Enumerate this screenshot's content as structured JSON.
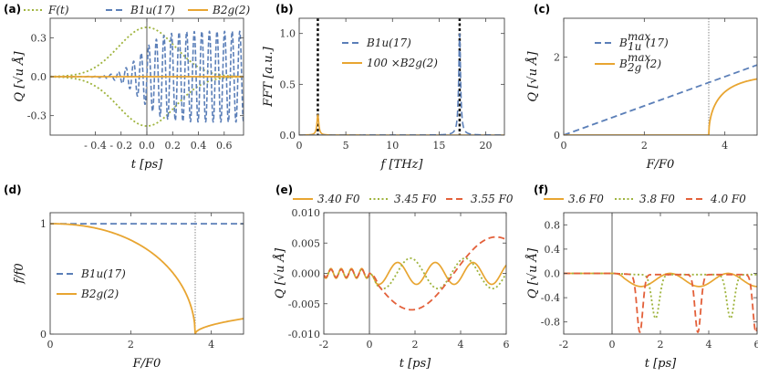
{
  "colors": {
    "blue": "#5b7fb8",
    "orange": "#e8a531",
    "green": "#9fb43e",
    "red": "#e3603a",
    "black": "#111111"
  },
  "chart_data": [
    {
      "panel": "(a)",
      "type": "line",
      "xlabel": "t [ps]",
      "ylabel": "Q [√u Å]",
      "xlim": [
        -0.75,
        0.75
      ],
      "ylim": [
        -0.45,
        0.45
      ],
      "xticks": [
        -0.4,
        -0.2,
        0.0,
        0.2,
        0.4,
        0.6
      ],
      "xtick_labels": [
        "- 0.4",
        "- 0.2",
        "0.0",
        "0.2",
        "0.4",
        "0.6"
      ],
      "yticks": [
        -0.3,
        0.0,
        0.3
      ],
      "ytick_labels": [
        "-0.3",
        "0.0",
        "0.3"
      ],
      "legend": [
        "F(t)",
        "B1u(17)",
        "B2g(2)"
      ],
      "series": [
        {
          "name": "F(t)",
          "style": "dotted",
          "color": "green",
          "description": "Gaussian pulse envelope ±0.38 centered at t=0"
        },
        {
          "name": "B1u(17)",
          "style": "dashed",
          "color": "blue",
          "frequency_THz": 17,
          "amplitude_after_pulse": 0.35
        },
        {
          "name": "B2g(2)",
          "style": "solid",
          "color": "orange",
          "amplitude": 0.0
        }
      ]
    },
    {
      "panel": "(b)",
      "type": "line",
      "xlabel": "f [THz]",
      "ylabel": "FFT [a.u.]",
      "xlim": [
        0,
        22
      ],
      "ylim": [
        0,
        1.15
      ],
      "xticks": [
        0,
        5,
        10,
        15,
        20
      ],
      "xtick_labels": [
        "0",
        "5",
        "10",
        "15",
        "20"
      ],
      "yticks": [
        0.0,
        0.5,
        1.0
      ],
      "ytick_labels": [
        "0.0",
        "0.5",
        "1.0"
      ],
      "legend": [
        "B1u(17)",
        "100 ×B2g(2)"
      ],
      "peaks": [
        {
          "series": "B1u(17)",
          "f": 17.2,
          "height": 1.0
        },
        {
          "series": "100 ×B2g(2)",
          "f": 2.0,
          "height": 0.2
        }
      ],
      "vertical_lines": [
        2.0,
        17.2
      ]
    },
    {
      "panel": "(c)",
      "type": "line",
      "xlabel": "F/F0",
      "ylabel": "Q [√u Å]",
      "xlim": [
        0,
        4.8
      ],
      "ylim": [
        0,
        3.0
      ],
      "xticks": [
        0,
        2,
        4
      ],
      "xtick_labels": [
        "0",
        "2",
        "4"
      ],
      "yticks": [
        0,
        2
      ],
      "ytick_labels": [
        "0",
        "2"
      ],
      "legend": [
        "B1u max (17)",
        "B2g max (2)"
      ],
      "series": [
        {
          "name": "B1u max(17)",
          "points": [
            [
              0,
              0
            ],
            [
              4.8,
              1.8
            ]
          ]
        },
        {
          "name": "B2g max(2)",
          "threshold": 3.6,
          "points": [
            [
              3.6,
              0
            ],
            [
              3.7,
              0.55
            ],
            [
              3.9,
              0.95
            ],
            [
              4.2,
              1.3
            ],
            [
              4.5,
              1.5
            ],
            [
              4.8,
              1.6
            ]
          ]
        }
      ],
      "vertical_lines": [
        3.6
      ]
    },
    {
      "panel": "(d)",
      "type": "line",
      "xlabel": "F/F0",
      "ylabel": "f/f0",
      "xlim": [
        0,
        4.8
      ],
      "ylim": [
        0,
        1.1
      ],
      "xticks": [
        0,
        2,
        4
      ],
      "xtick_labels": [
        "0",
        "2",
        "4"
      ],
      "yticks": [
        0,
        1
      ],
      "ytick_labels": [
        "0",
        "1"
      ],
      "legend": [
        "B1u(17)",
        "B2g(2)"
      ],
      "series": [
        {
          "name": "B1u(17)",
          "points": [
            [
              0,
              1
            ],
            [
              4.8,
              1
            ]
          ]
        },
        {
          "name": "B2g(2)",
          "points": [
            [
              0,
              1
            ],
            [
              0.5,
              0.99
            ],
            [
              1.0,
              0.96
            ],
            [
              1.5,
              0.915
            ],
            [
              2.0,
              0.845
            ],
            [
              2.5,
              0.745
            ],
            [
              3.0,
              0.6
            ],
            [
              3.3,
              0.45
            ],
            [
              3.5,
              0.24
            ],
            [
              3.6,
              0.0
            ],
            [
              3.8,
              0.07
            ],
            [
              4.2,
              0.11
            ],
            [
              4.8,
              0.14
            ]
          ]
        }
      ],
      "vertical_lines": [
        3.6
      ]
    },
    {
      "panel": "(e)",
      "type": "line",
      "xlabel": "t [ps]",
      "ylabel": "Q [√u Å]",
      "xlim": [
        -2,
        6
      ],
      "ylim": [
        -0.01,
        0.01
      ],
      "xticks": [
        -2,
        0,
        2,
        4,
        6
      ],
      "xtick_labels": [
        "-2",
        "0",
        "2",
        "4",
        "6"
      ],
      "yticks": [
        -0.01,
        -0.005,
        0.0,
        0.005,
        0.01
      ],
      "ytick_labels": [
        "-0.010",
        "-0.005",
        "0.000",
        "0.005",
        "0.010"
      ],
      "legend": [
        "3.40 F0",
        "3.45 F0",
        "3.55 F0"
      ],
      "series": [
        {
          "name": "3.40 F0",
          "description": "small oscillation period ~1.6 ps, amp 0.0018"
        },
        {
          "name": "3.45 F0",
          "description": "oscillation period ~2.4 ps, amp 0.0025"
        },
        {
          "name": "3.55 F0",
          "description": "slow oscillation, min -0.006 at t≈1.5, max 0.006 at t≈5.2"
        }
      ]
    },
    {
      "panel": "(f)",
      "type": "line",
      "xlabel": "t [ps]",
      "ylabel": "Q [√u Å]",
      "xlim": [
        -2,
        6
      ],
      "ylim": [
        -1.0,
        1.0
      ],
      "xticks": [
        -2,
        0,
        2,
        4,
        6
      ],
      "xtick_labels": [
        "-2",
        "0",
        "2",
        "4",
        "6"
      ],
      "yticks": [
        -0.8,
        -0.4,
        0.0,
        0.4,
        0.8
      ],
      "ytick_labels": [
        "-0.8",
        "-0.4",
        "0.0",
        "0.4",
        "0.8"
      ],
      "legend": [
        "3.6 F0",
        "3.8 F0",
        "4.0 F0"
      ],
      "series": [
        {
          "name": "3.6 F0",
          "description": "shallow dips ~ -0.2"
        },
        {
          "name": "3.8 F0",
          "dips_t": [
            1.8,
            4.9
          ],
          "dip_depth": -0.72
        },
        {
          "name": "4.0 F0",
          "dips_t": [
            1.15,
            3.55,
            5.95
          ],
          "dip_depth": -0.95
        }
      ]
    }
  ]
}
